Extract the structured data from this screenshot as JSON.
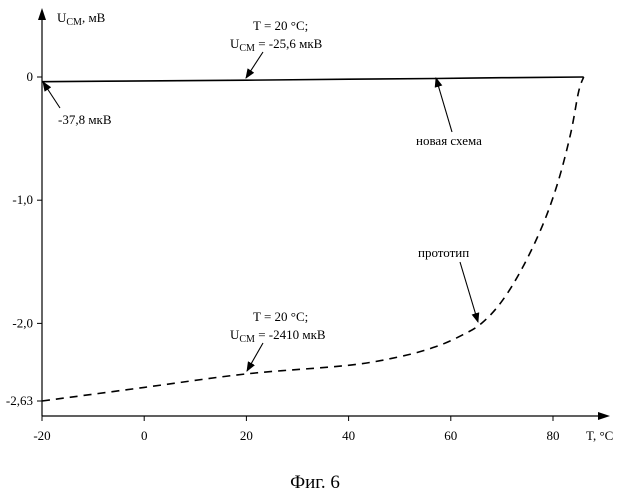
{
  "chart_data": {
    "type": "line",
    "xlabel": "T, °C",
    "ylabel_main": "U",
    "ylabel_sub": "СМ",
    "ylabel_unit": ", мВ",
    "xlim": [
      -20,
      87
    ],
    "ylim": [
      -2.63,
      0.5
    ],
    "x_ticks": [
      {
        "value": -20,
        "label": "-20"
      },
      {
        "value": 0,
        "label": "0"
      },
      {
        "value": 20,
        "label": "20"
      },
      {
        "value": 40,
        "label": "40"
      },
      {
        "value": 60,
        "label": "60"
      },
      {
        "value": 80,
        "label": "80"
      }
    ],
    "y_ticks": [
      {
        "value": 0,
        "label": "0"
      },
      {
        "value": -1.0,
        "label": "-1,0"
      },
      {
        "value": -2.0,
        "label": "-2,0"
      },
      {
        "value": -2.63,
        "label": "-2,63"
      }
    ],
    "series": [
      {
        "name": "новая схема",
        "style": "solid",
        "points": [
          [
            -20,
            -0.0378
          ],
          [
            0,
            -0.032
          ],
          [
            20,
            -0.0256
          ],
          [
            40,
            -0.018
          ],
          [
            57,
            -0.012
          ],
          [
            70,
            -0.006
          ],
          [
            86,
            0.0
          ]
        ]
      },
      {
        "name": "прототип",
        "style": "dashed",
        "points": [
          [
            -20,
            -2.63
          ],
          [
            0,
            -2.52
          ],
          [
            20,
            -2.41
          ],
          [
            40,
            -2.34
          ],
          [
            50,
            -2.27
          ],
          [
            57,
            -2.19
          ],
          [
            62,
            -2.1
          ],
          [
            66,
            -2.0
          ],
          [
            70,
            -1.82
          ],
          [
            74,
            -1.55
          ],
          [
            78,
            -1.2
          ],
          [
            81,
            -0.85
          ],
          [
            83.5,
            -0.45
          ],
          [
            85,
            -0.12
          ],
          [
            86,
            0.0
          ]
        ]
      }
    ],
    "annotations": {
      "top_line1": "T = 20 °C;",
      "top_u": "U",
      "top_sub": "СМ",
      "top_value": " = -25,6 мкВ",
      "left_value": "-37,8 мкВ",
      "new_scheme": "новая схема",
      "prototype": "прототип",
      "bottom_line1": "T = 20 °C;",
      "bottom_u": "U",
      "bottom_sub": "СМ",
      "bottom_value": " = -2410 мкВ"
    },
    "caption": "Фиг. 6"
  }
}
